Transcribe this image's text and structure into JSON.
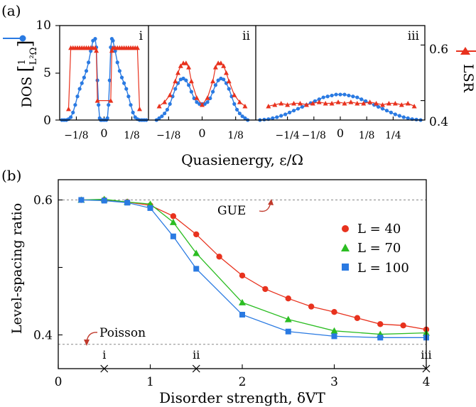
{
  "chart_data": [
    {
      "type": "line",
      "panel_label": "(a)",
      "xlabel": "Quasienergy, ε/Ω",
      "ylabel_left": "DOS [1/(L²Ω)]",
      "ylabel_right": "LSR",
      "ylim_left": [
        0,
        10
      ],
      "ylim_right": [
        0.33,
        0.67
      ],
      "yticks_left": [
        "0",
        "5",
        "10"
      ],
      "yticks_right": [
        "0.4",
        "0.6"
      ],
      "colors": {
        "dos": "#2a7ae2",
        "lsr": "#e8321e"
      },
      "subpanels": [
        {
          "label": "i",
          "xlim": [
            -0.2,
            0.2
          ],
          "xticks": [
            {
              "v": -0.125,
              "t": "−1/8"
            },
            {
              "v": 0,
              "t": "0"
            },
            {
              "v": 0.125,
              "t": "1/8"
            }
          ],
          "dos": {
            "x": [
              -0.19,
              -0.18,
              -0.17,
              -0.16,
              -0.15,
              -0.14,
              -0.13,
              -0.12,
              -0.11,
              -0.1,
              -0.09,
              -0.08,
              -0.07,
              -0.06,
              -0.05,
              -0.04,
              -0.035,
              -0.03,
              -0.025,
              -0.02,
              -0.015,
              -0.01,
              0,
              0.01,
              0.015,
              0.02,
              0.025,
              0.03,
              0.035,
              0.04,
              0.05,
              0.06,
              0.07,
              0.08,
              0.09,
              0.1,
              0.11,
              0.12,
              0.13,
              0.14,
              0.15,
              0.16,
              0.17,
              0.18,
              0.19
            ],
            "y": [
              0,
              0,
              0,
              0.1,
              0.3,
              0.8,
              1.6,
              2.5,
              3.3,
              3.9,
              4.5,
              5.2,
              6.1,
              7.3,
              8.4,
              8.6,
              7.7,
              4.2,
              1.6,
              0.2,
              0,
              0,
              0,
              0,
              0.2,
              1.6,
              4.2,
              7.7,
              8.6,
              8.4,
              7.3,
              6.1,
              5.2,
              4.5,
              3.9,
              3.3,
              2.5,
              1.6,
              0.8,
              0.3,
              0.1,
              0,
              0,
              0,
              0
            ]
          },
          "lsr": {
            "x": [
              -0.16,
              -0.15,
              -0.14,
              -0.13,
              -0.12,
              -0.11,
              -0.1,
              -0.09,
              -0.08,
              -0.07,
              -0.06,
              -0.05,
              -0.04,
              -0.035,
              -0.03,
              0.03,
              0.035,
              0.04,
              0.05,
              0.06,
              0.07,
              0.08,
              0.09,
              0.1,
              0.11,
              0.12,
              0.13,
              0.14,
              0.15,
              0.16
            ],
            "y": [
              0.37,
              0.59,
              0.59,
              0.59,
              0.59,
              0.59,
              0.59,
              0.59,
              0.59,
              0.59,
              0.59,
              0.59,
              0.59,
              0.58,
              0.4,
              0.4,
              0.58,
              0.59,
              0.59,
              0.59,
              0.59,
              0.59,
              0.59,
              0.59,
              0.59,
              0.59,
              0.59,
              0.59,
              0.59,
              0.37
            ]
          }
        },
        {
          "label": "ii",
          "xlim": [
            -0.2,
            0.2
          ],
          "xticks": [
            {
              "v": -0.125,
              "t": "−1/8"
            },
            {
              "v": 0,
              "t": "0"
            },
            {
              "v": 0.125,
              "t": "1/8"
            }
          ],
          "dos": {
            "x": [
              -0.17,
              -0.16,
              -0.15,
              -0.14,
              -0.13,
              -0.12,
              -0.11,
              -0.1,
              -0.09,
              -0.08,
              -0.07,
              -0.06,
              -0.05,
              -0.04,
              -0.03,
              -0.02,
              -0.01,
              0,
              0.01,
              0.02,
              0.03,
              0.04,
              0.05,
              0.06,
              0.07,
              0.08,
              0.09,
              0.1,
              0.11,
              0.12,
              0.13,
              0.14,
              0.15,
              0.16,
              0.17
            ],
            "y": [
              0,
              0.2,
              0.4,
              0.7,
              1.1,
              1.7,
              2.5,
              3.3,
              3.9,
              4.3,
              4.4,
              4.2,
              3.7,
              3,
              2.3,
              1.9,
              1.7,
              1.7,
              1.7,
              1.9,
              2.3,
              3,
              3.7,
              4.2,
              4.4,
              4.3,
              3.9,
              3.3,
              2.5,
              1.7,
              1.1,
              0.7,
              0.4,
              0.2,
              0
            ]
          },
          "lsr": {
            "x": [
              -0.16,
              -0.14,
              -0.12,
              -0.1,
              -0.09,
              -0.08,
              -0.07,
              -0.06,
              -0.05,
              -0.04,
              -0.02,
              0,
              0.02,
              0.04,
              0.05,
              0.06,
              0.07,
              0.08,
              0.09,
              0.1,
              0.12,
              0.14,
              0.16
            ],
            "y": [
              0.38,
              0.395,
              0.42,
              0.47,
              0.5,
              0.525,
              0.535,
              0.535,
              0.52,
              0.47,
              0.41,
              0.385,
              0.41,
              0.47,
              0.52,
              0.535,
              0.535,
              0.525,
              0.5,
              0.47,
              0.42,
              0.395,
              0.38
            ]
          }
        },
        {
          "label": "iii",
          "xlim": [
            -0.4,
            0.4
          ],
          "xticks": [
            {
              "v": -0.25,
              "t": "−1/4"
            },
            {
              "v": -0.125,
              "t": "−1/8"
            },
            {
              "v": 0,
              "t": "0"
            },
            {
              "v": 0.125,
              "t": "1/8"
            },
            {
              "v": 0.25,
              "t": "1/4"
            }
          ],
          "dos": {
            "x": [
              -0.38,
              -0.36,
              -0.34,
              -0.32,
              -0.3,
              -0.28,
              -0.26,
              -0.24,
              -0.22,
              -0.2,
              -0.18,
              -0.16,
              -0.14,
              -0.12,
              -0.1,
              -0.08,
              -0.06,
              -0.04,
              -0.02,
              0,
              0.02,
              0.04,
              0.06,
              0.08,
              0.1,
              0.12,
              0.14,
              0.16,
              0.18,
              0.2,
              0.22,
              0.24,
              0.26,
              0.28,
              0.3,
              0.32,
              0.34,
              0.36,
              0.38
            ],
            "y": [
              0,
              0.05,
              0.1,
              0.2,
              0.3,
              0.45,
              0.6,
              0.8,
              1,
              1.2,
              1.4,
              1.6,
              1.8,
              2,
              2.2,
              2.4,
              2.5,
              2.6,
              2.7,
              2.7,
              2.7,
              2.6,
              2.5,
              2.4,
              2.2,
              2,
              1.8,
              1.6,
              1.4,
              1.2,
              1,
              0.8,
              0.6,
              0.45,
              0.3,
              0.2,
              0.1,
              0.05,
              0
            ]
          },
          "lsr": {
            "x": [
              -0.34,
              -0.31,
              -0.28,
              -0.25,
              -0.22,
              -0.19,
              -0.16,
              -0.13,
              -0.1,
              -0.07,
              -0.04,
              -0.01,
              0.02,
              0.05,
              0.08,
              0.11,
              0.14,
              0.17,
              0.2,
              0.23,
              0.26,
              0.29,
              0.32,
              0.35
            ],
            "y": [
              0.38,
              0.385,
              0.39,
              0.385,
              0.39,
              0.39,
              0.385,
              0.39,
              0.395,
              0.39,
              0.39,
              0.395,
              0.39,
              0.395,
              0.39,
              0.39,
              0.395,
              0.39,
              0.385,
              0.39,
              0.39,
              0.385,
              0.39,
              0.38
            ]
          }
        }
      ]
    },
    {
      "type": "line",
      "panel_label": "(b)",
      "xlabel": "Disorder strength, δVT",
      "ylabel": "Level-spacing ratio",
      "xlim": [
        0,
        4
      ],
      "ylim": [
        0.35,
        0.63
      ],
      "xticks": [
        "0",
        "1",
        "2",
        "3",
        "4"
      ],
      "yticks": [
        "0.4",
        "0.6"
      ],
      "reference_lines": [
        {
          "label": "GUE",
          "y": 0.6
        },
        {
          "label": "Poisson",
          "y": 0.386
        }
      ],
      "markers_on_axis": [
        {
          "label": "i",
          "x": 0.5
        },
        {
          "label": "ii",
          "x": 1.5
        },
        {
          "label": "iii",
          "x": 4
        }
      ],
      "x": [
        0.25,
        0.5,
        0.75,
        1,
        1.25,
        1.5,
        1.75,
        2,
        2.25,
        2.5,
        2.75,
        3,
        3.25,
        3.5,
        3.75,
        4
      ],
      "series": [
        {
          "name": "L = 40",
          "color": "#e8321e",
          "marker": "circle",
          "values": [
            0.6,
            0.6,
            0.597,
            0.592,
            0.576,
            0.549,
            0.516,
            0.488,
            0.468,
            0.454,
            0.442,
            0.434,
            0.425,
            0.416,
            0.414,
            0.408
          ]
        },
        {
          "name": "L = 70",
          "color": "#2bbd22",
          "marker": "triangle",
          "values": [
            0.6,
            0.601,
            0.597,
            0.594,
            0.567,
            0.521,
            null,
            0.448,
            null,
            0.423,
            null,
            0.406,
            null,
            0.401,
            null,
            0.403
          ]
        },
        {
          "name": "L = 100",
          "color": "#2a7ae2",
          "marker": "square",
          "values": [
            0.6,
            0.599,
            0.596,
            0.588,
            0.546,
            0.498,
            null,
            0.43,
            null,
            0.405,
            null,
            0.398,
            null,
            0.396,
            null,
            0.396
          ]
        }
      ],
      "legend_position": "right"
    }
  ]
}
